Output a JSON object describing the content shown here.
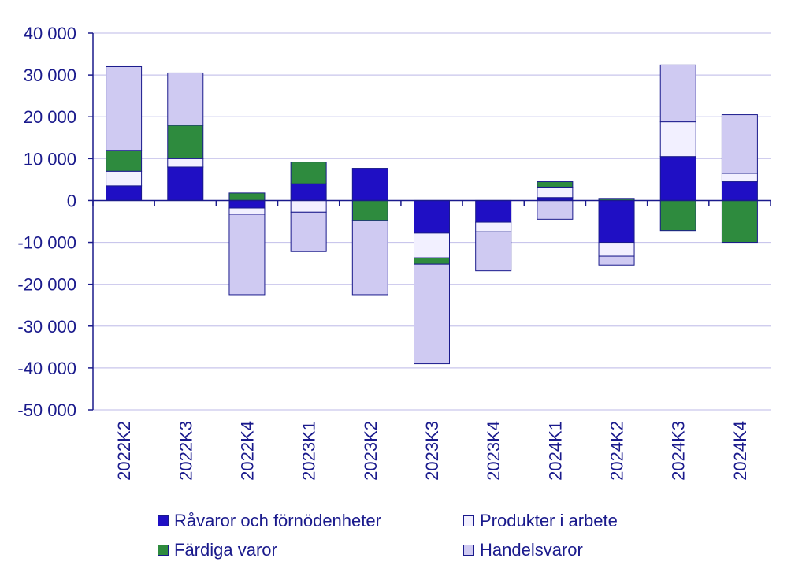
{
  "chart_data": {
    "type": "bar",
    "stacked": true,
    "categories": [
      "2022K2",
      "2022K3",
      "2022K4",
      "2023K1",
      "2023K2",
      "2023K3",
      "2023K4",
      "2024K1",
      "2024K2",
      "2024K3",
      "2024K4"
    ],
    "series": [
      {
        "name": "Råvaror och förnödenheter",
        "color": "#1f0fc4",
        "values": [
          3500,
          8000,
          -1800,
          4000,
          7700,
          -7800,
          -5200,
          700,
          -10000,
          10500,
          4500
        ]
      },
      {
        "name": "Produkter i arbete",
        "color": "#f2f0ff",
        "values": [
          3500,
          2000,
          -1500,
          -2800,
          0,
          -5900,
          -2300,
          2500,
          -3300,
          8300,
          2000
        ]
      },
      {
        "name": "Färdiga varor",
        "color": "#2e8b3e",
        "values": [
          5000,
          8000,
          1800,
          5200,
          -4800,
          -1500,
          0,
          1300,
          500,
          -7200,
          -10000
        ]
      },
      {
        "name": "Handelsvaror",
        "color": "#cfcaf2",
        "values": [
          20000,
          12500,
          -19200,
          -9400,
          -17700,
          -23800,
          -9300,
          -4500,
          -2100,
          13600,
          14000
        ]
      }
    ],
    "ylim": [
      -50000,
      40000
    ],
    "yticks": [
      40000,
      30000,
      20000,
      10000,
      0,
      -10000,
      -20000,
      -30000,
      -40000,
      -50000
    ],
    "ytick_labels": [
      "40 000",
      "30 000",
      "20 000",
      "10 000",
      "0",
      "-10 000",
      "-20 000",
      "-30 000",
      "-40 000",
      "-50 000"
    ],
    "grid": true,
    "legend_position": "bottom",
    "axis_color": "#1a1a8c",
    "grid_color": "#c9c6ec"
  }
}
